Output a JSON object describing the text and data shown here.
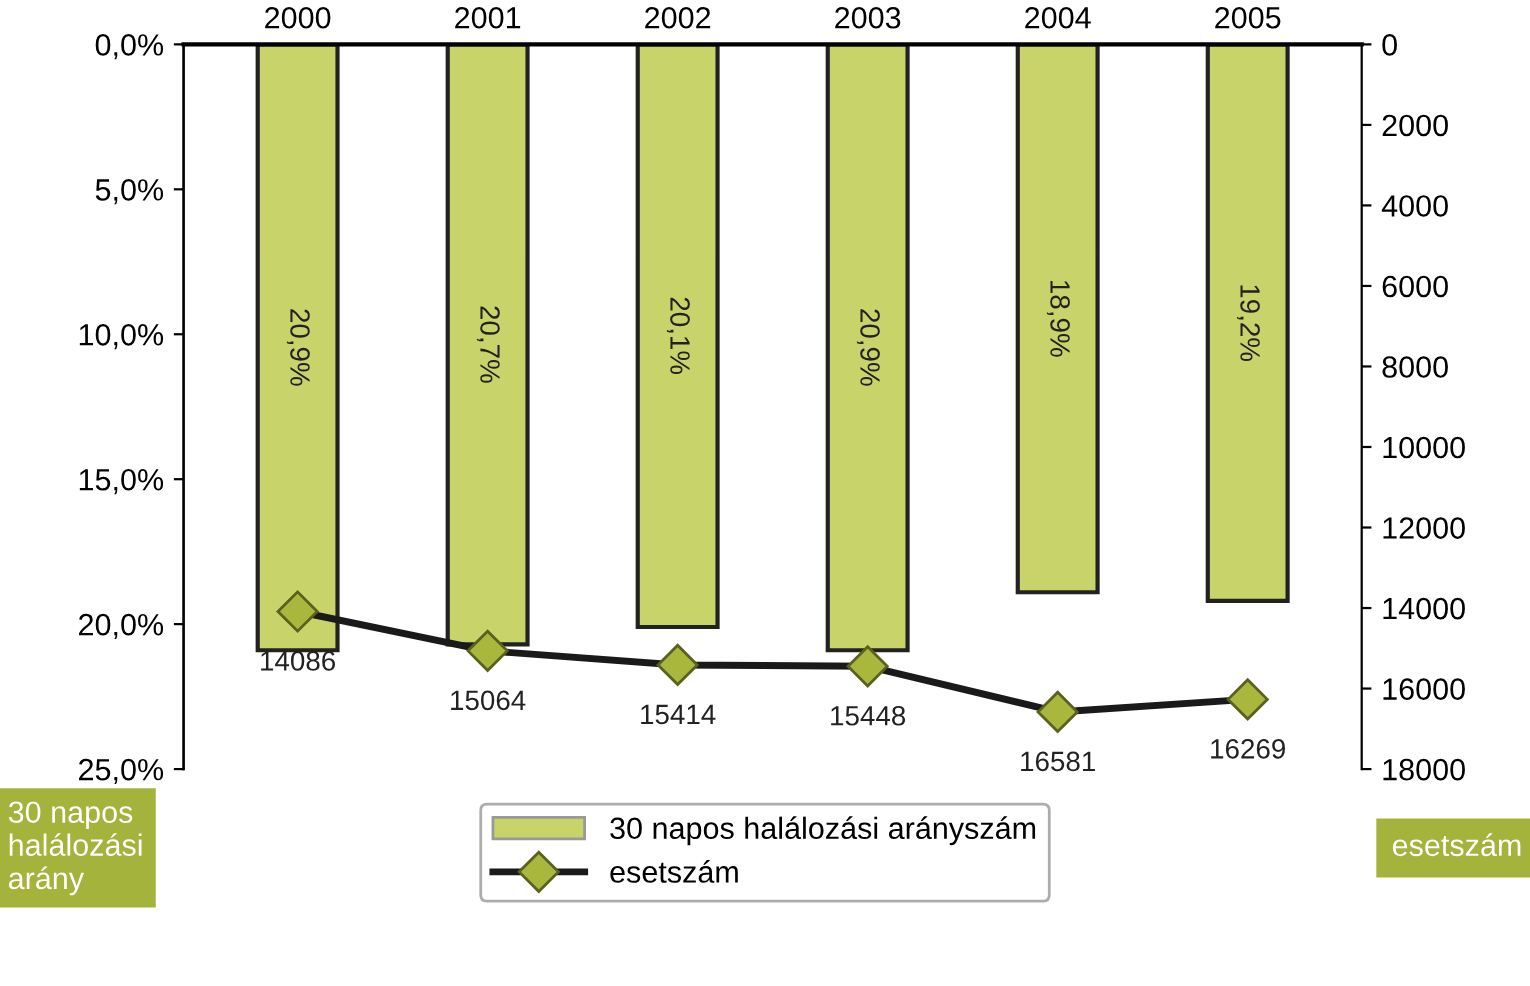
{
  "chart_data": {
    "type": "bar",
    "categories": [
      "2000",
      "2001",
      "2002",
      "2003",
      "2004",
      "2005"
    ],
    "ylabel": "30 napos\nhalálozási\narány",
    "y2label": "esetszám",
    "series": [
      {
        "name": "30 napos halálozási arányszám",
        "color": "#c8d46a",
        "values": [
          20.9,
          20.7,
          20.1,
          20.9,
          18.9,
          19.2
        ],
        "value_labels": [
          "20,9%",
          "20,7%",
          "20,1%",
          "20,9%",
          "18,9%",
          "19,2%"
        ]
      },
      {
        "name": "esetszám",
        "type": "line",
        "axis": "y2",
        "color": "#1a1a1a",
        "marker": "diamond",
        "values": [
          14086,
          15064,
          15414,
          15448,
          16581,
          16269
        ],
        "value_labels": [
          "14086",
          "15064",
          "15414",
          "15448",
          "16581",
          "16269"
        ]
      }
    ],
    "ylim": [
      25,
      0
    ],
    "yticks": [
      {
        "value": 0,
        "label": "0,0%"
      },
      {
        "value": 5,
        "label": "5,0%"
      },
      {
        "value": 10,
        "label": "10,0%"
      },
      {
        "value": 15,
        "label": "15,0%"
      },
      {
        "value": 20,
        "label": "20,0%"
      },
      {
        "value": 25,
        "label": "25,0%"
      }
    ],
    "y2lim": [
      18000,
      0
    ],
    "y2ticks": [
      0,
      2000,
      4000,
      6000,
      8000,
      10000,
      12000,
      14000,
      16000,
      18000
    ],
    "legend": "bottom",
    "grid": false
  }
}
